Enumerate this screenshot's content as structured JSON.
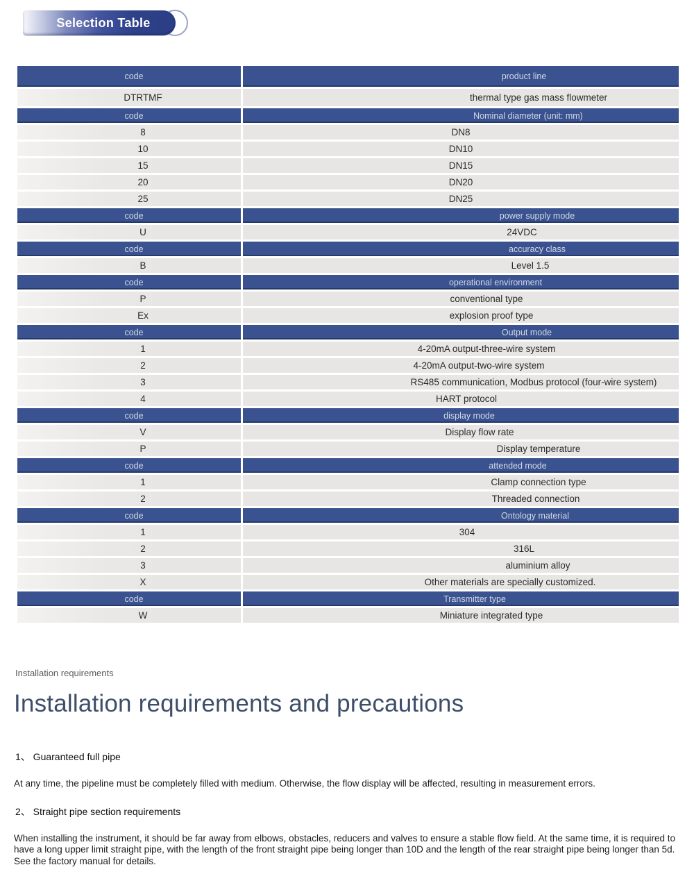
{
  "badge": {
    "label": "Selection Table"
  },
  "table": {
    "rows": [
      {
        "type": "header",
        "left": "code",
        "right": "product line"
      },
      {
        "type": "data",
        "left": "DTRTMF",
        "right": "thermal type gas mass flowmeter"
      },
      {
        "type": "header",
        "left": "code",
        "right": "Nominal diameter (unit: mm)"
      },
      {
        "type": "data",
        "left": "8",
        "right": "DN8"
      },
      {
        "type": "data",
        "left": "10",
        "right": "DN10"
      },
      {
        "type": "data",
        "left": "15",
        "right": "DN15"
      },
      {
        "type": "data",
        "left": "20",
        "right": "DN20"
      },
      {
        "type": "data",
        "left": "25",
        "right": "DN25"
      },
      {
        "type": "header",
        "left": "code",
        "right": "power supply mode"
      },
      {
        "type": "data",
        "left": "U",
        "right": "24VDC"
      },
      {
        "type": "header",
        "left": "code",
        "right": "accuracy class"
      },
      {
        "type": "data",
        "left": "B",
        "right": "Level 1.5"
      },
      {
        "type": "header",
        "left": "code",
        "right": "operational environment"
      },
      {
        "type": "data",
        "left": "P",
        "right": "conventional type"
      },
      {
        "type": "data",
        "left": "Ex",
        "right": "explosion proof type"
      },
      {
        "type": "header",
        "left": "code",
        "right": "Output mode"
      },
      {
        "type": "data",
        "left": "1",
        "right": "4-20mA output-three-wire system"
      },
      {
        "type": "data",
        "left": "2",
        "right": "4-20mA output-two-wire system"
      },
      {
        "type": "data",
        "left": "3",
        "right": "RS485 communication, Modbus protocol (four-wire system)"
      },
      {
        "type": "data",
        "left": "4",
        "right": "HART protocol"
      },
      {
        "type": "header",
        "left": "code",
        "right": "display mode"
      },
      {
        "type": "data",
        "left": "V",
        "right": "Display flow rate"
      },
      {
        "type": "data",
        "left": "P",
        "right": "Display temperature"
      },
      {
        "type": "header",
        "left": "code",
        "right": "attended mode"
      },
      {
        "type": "data",
        "left": "1",
        "right": "Clamp connection type"
      },
      {
        "type": "data",
        "left": "2",
        "right": "Threaded connection"
      },
      {
        "type": "header",
        "left": "code",
        "right": "Ontology material"
      },
      {
        "type": "data",
        "left": "1",
        "right": "304"
      },
      {
        "type": "data",
        "left": "2",
        "right": "316L"
      },
      {
        "type": "data",
        "left": "3",
        "right": "aluminium alloy"
      },
      {
        "type": "data",
        "left": "X",
        "right": "Other materials are specially customized."
      },
      {
        "type": "header",
        "left": "code",
        "right": "Transmitter type"
      },
      {
        "type": "data",
        "left": "W",
        "right": "Miniature integrated type"
      }
    ]
  },
  "section": {
    "eyebrow": "Installation requirements",
    "title": "Installation requirements and precautions",
    "items": [
      {
        "heading": "1、 Guaranteed full pipe",
        "body": "At any time, the pipeline must be completely filled with medium. Otherwise, the flow display will be affected, resulting in measurement errors."
      },
      {
        "heading": "2、 Straight pipe section requirements",
        "body": "When installing the instrument, it should be far away from elbows, obstacles, reducers and valves to ensure a stable flow field. At the same time, it is required to have a long upper limit straight pipe, with the length of the front straight pipe being longer than 10D and the length of the rear straight pipe being longer than 5d. See the factory manual for details."
      }
    ]
  },
  "colors": {
    "header_blue": "#3a5390",
    "header_blue_edge": "#26396b",
    "row_gray": "#e7e6e4",
    "badge_blue": "#2b3e85",
    "header_text": "#d2d8e4",
    "title_color": "#3e4e69"
  }
}
